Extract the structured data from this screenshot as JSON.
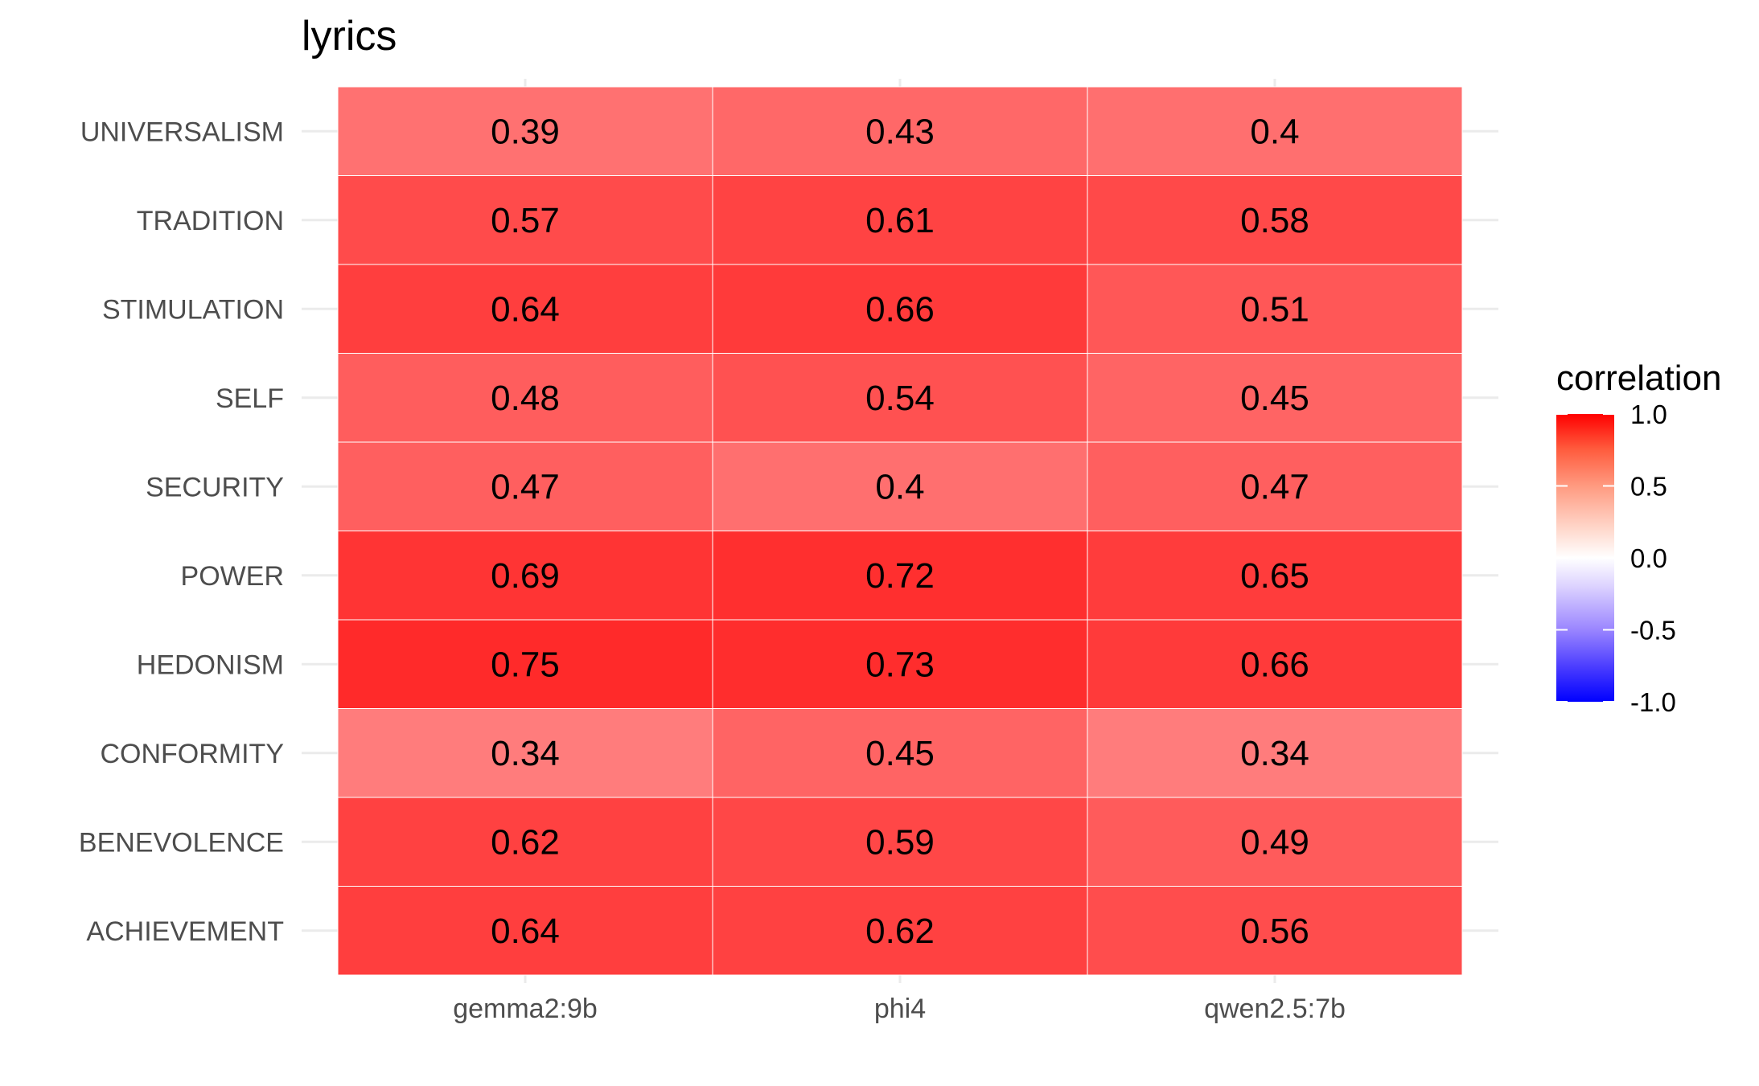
{
  "chart_data": {
    "type": "heatmap",
    "title": "lyrics",
    "xlabel": "",
    "ylabel": "",
    "x_categories": [
      "gemma2:9b",
      "phi4",
      "qwen2.5:7b"
    ],
    "y_categories": [
      "UNIVERSALISM",
      "TRADITION",
      "STIMULATION",
      "SELF",
      "SECURITY",
      "POWER",
      "HEDONISM",
      "CONFORMITY",
      "BENEVOLENCE",
      "ACHIEVEMENT"
    ],
    "values": [
      [
        0.39,
        0.43,
        0.4
      ],
      [
        0.57,
        0.61,
        0.58
      ],
      [
        0.64,
        0.66,
        0.51
      ],
      [
        0.48,
        0.54,
        0.45
      ],
      [
        0.47,
        0.4,
        0.47
      ],
      [
        0.69,
        0.72,
        0.65
      ],
      [
        0.75,
        0.73,
        0.66
      ],
      [
        0.34,
        0.45,
        0.34
      ],
      [
        0.62,
        0.59,
        0.49
      ],
      [
        0.64,
        0.62,
        0.56
      ]
    ],
    "value_labels": [
      [
        "0.39",
        "0.43",
        "0.4"
      ],
      [
        "0.57",
        "0.61",
        "0.58"
      ],
      [
        "0.64",
        "0.66",
        "0.51"
      ],
      [
        "0.48",
        "0.54",
        "0.45"
      ],
      [
        "0.47",
        "0.4",
        "0.47"
      ],
      [
        "0.69",
        "0.72",
        "0.65"
      ],
      [
        "0.75",
        "0.73",
        "0.66"
      ],
      [
        "0.34",
        "0.45",
        "0.34"
      ],
      [
        "0.62",
        "0.59",
        "0.49"
      ],
      [
        "0.64",
        "0.62",
        "0.56"
      ]
    ],
    "legend": {
      "title": "correlation",
      "position": "right",
      "range": [
        -1.0,
        1.0
      ],
      "ticks": [
        1.0,
        0.5,
        0.0,
        -0.5,
        -1.0
      ],
      "tick_labels": [
        "1.0",
        "0.5",
        "0.0",
        "-0.5",
        "-1.0"
      ],
      "colors": {
        "low": "#0000ff",
        "mid": "#ffffff",
        "high": "#ff0000"
      }
    },
    "grid": true
  }
}
